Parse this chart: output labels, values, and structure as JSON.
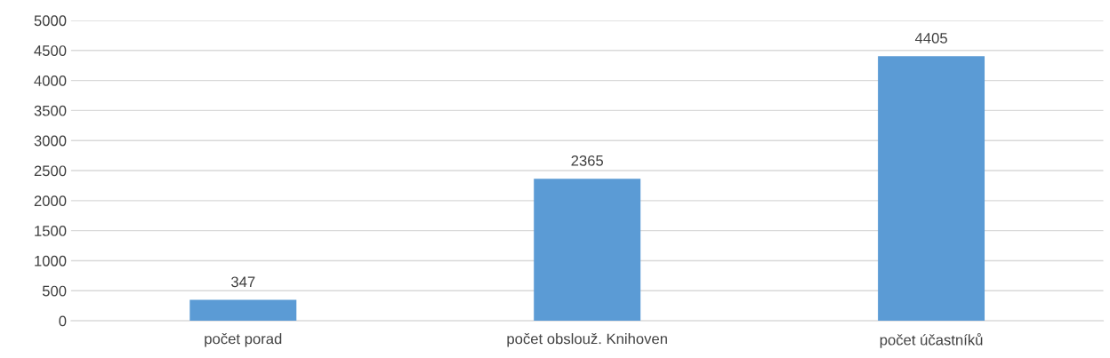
{
  "chart_data": {
    "type": "bar",
    "categories": [
      "počet porad",
      "počet obslouž. Knihoven",
      "počet účastníků"
    ],
    "values": [
      347,
      2365,
      4405
    ],
    "color": "#5b9bd5",
    "ylim": [
      0,
      5000
    ],
    "yticks": [
      0,
      500,
      1000,
      1500,
      2000,
      2500,
      3000,
      3500,
      4000,
      4500,
      5000
    ],
    "grid": "y",
    "data_labels": true,
    "legend": false
  }
}
